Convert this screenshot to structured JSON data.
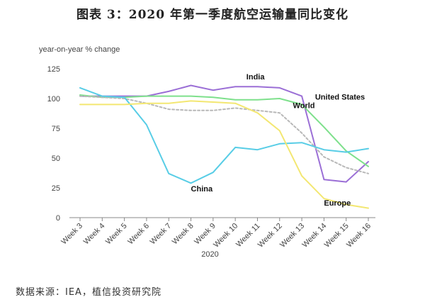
{
  "page": {
    "title": "图表 3：2020 年第一季度航空运输量同比变化",
    "source": "数据来源：IEA，植信投资研究院"
  },
  "chart_data": {
    "type": "line",
    "ylabel": "year-on-year % change",
    "xlabel": "2020",
    "ylim": [
      0,
      125
    ],
    "yticks": [
      0,
      25,
      50,
      75,
      100,
      125
    ],
    "grid": false,
    "categories": [
      "Week 3",
      "Week 4",
      "Week 5",
      "Week 6",
      "Week 7",
      "Week 8",
      "Week 9",
      "Week 10",
      "Week 11",
      "Week 12",
      "Week 13",
      "Week 14",
      "Week 15",
      "Week 16"
    ],
    "series": [
      {
        "name": "India",
        "color": "#9b6fd6",
        "dash": "",
        "values": [
          102,
          102,
          102,
          102,
          106,
          111,
          107,
          110,
          110,
          109,
          102,
          32,
          30,
          47
        ]
      },
      {
        "name": "United States",
        "color": "#7ee08c",
        "dash": "",
        "values": [
          103,
          101,
          101,
          102,
          102,
          102,
          101,
          99,
          99,
          100,
          95,
          76,
          56,
          43
        ]
      },
      {
        "name": "World",
        "color": "#b8b8b8",
        "dash": "3,3",
        "values": [
          102,
          101,
          100,
          96,
          91,
          90,
          90,
          92,
          90,
          88,
          71,
          51,
          42,
          37
        ]
      },
      {
        "name": "China",
        "color": "#58cde6",
        "dash": "",
        "values": [
          109,
          102,
          101,
          78,
          37,
          29,
          38,
          59,
          57,
          62,
          63,
          57,
          55,
          58
        ]
      },
      {
        "name": "Europe",
        "color": "#f3e772",
        "dash": "",
        "values": [
          95,
          95,
          95,
          96,
          96,
          98,
          97,
          96,
          88,
          73,
          35,
          16,
          11,
          8
        ]
      }
    ],
    "labels": [
      {
        "text": "India",
        "series": "India",
        "at": 7.5,
        "value": 116
      },
      {
        "text": "United States",
        "series": "United States",
        "at": 10.6,
        "value": 99
      },
      {
        "text": "World",
        "series": "World",
        "at": 9.6,
        "value": 92
      },
      {
        "text": "China",
        "series": "China",
        "at": 5.0,
        "value": 22
      },
      {
        "text": "Europe",
        "series": "Europe",
        "at": 11.0,
        "value": 10
      }
    ]
  }
}
